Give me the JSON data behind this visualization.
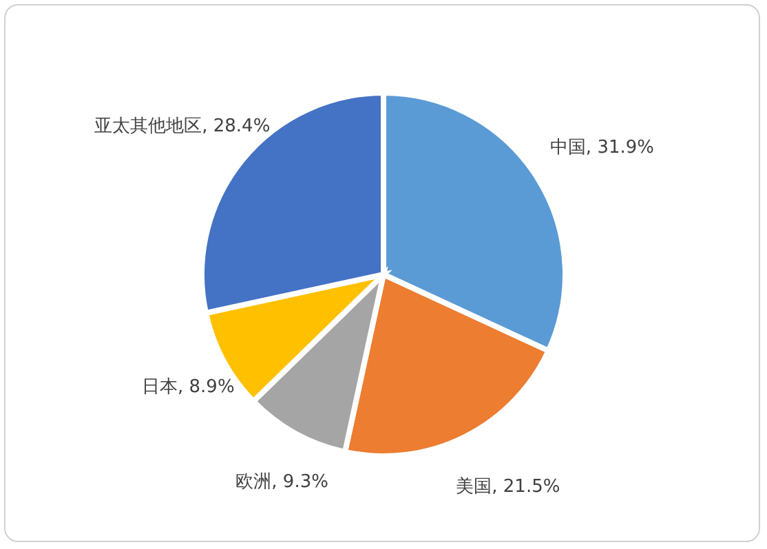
{
  "chart_data": {
    "type": "pie",
    "categories": [
      "中国",
      "美国",
      "欧洲",
      "日本",
      "亚太其他地区"
    ],
    "values": [
      31.9,
      21.5,
      9.3,
      8.9,
      28.4
    ],
    "colors": [
      "#5b9bd5",
      "#ed7d31",
      "#a5a5a5",
      "#ffc000",
      "#4472c4"
    ],
    "value_labels": [
      ", 31.9%",
      ", 21.5%",
      ", 9.3%",
      ", 8.9%",
      ", 28.4%"
    ],
    "legend": false
  }
}
